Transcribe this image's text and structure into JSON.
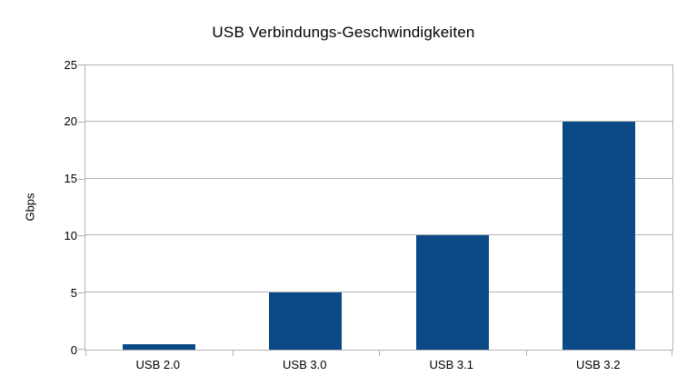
{
  "chart_data": {
    "type": "bar",
    "title": "USB Verbindungs-Geschwindigkeiten",
    "xlabel": "",
    "ylabel": "Gbps",
    "categories": [
      "USB 2.0",
      "USB 3.0",
      "USB 3.1",
      "USB 3.2"
    ],
    "values": [
      0.48,
      5,
      10,
      20
    ],
    "ylim": [
      0,
      25
    ],
    "yticks": [
      0,
      5,
      10,
      15,
      20,
      25
    ],
    "grid": true,
    "legend": false,
    "bar_color": "#0b4a86",
    "grid_color": "#b3b3b3",
    "axis_color": "#b3b3b3",
    "text_color": "#000000",
    "background_color": "#ffffff"
  }
}
